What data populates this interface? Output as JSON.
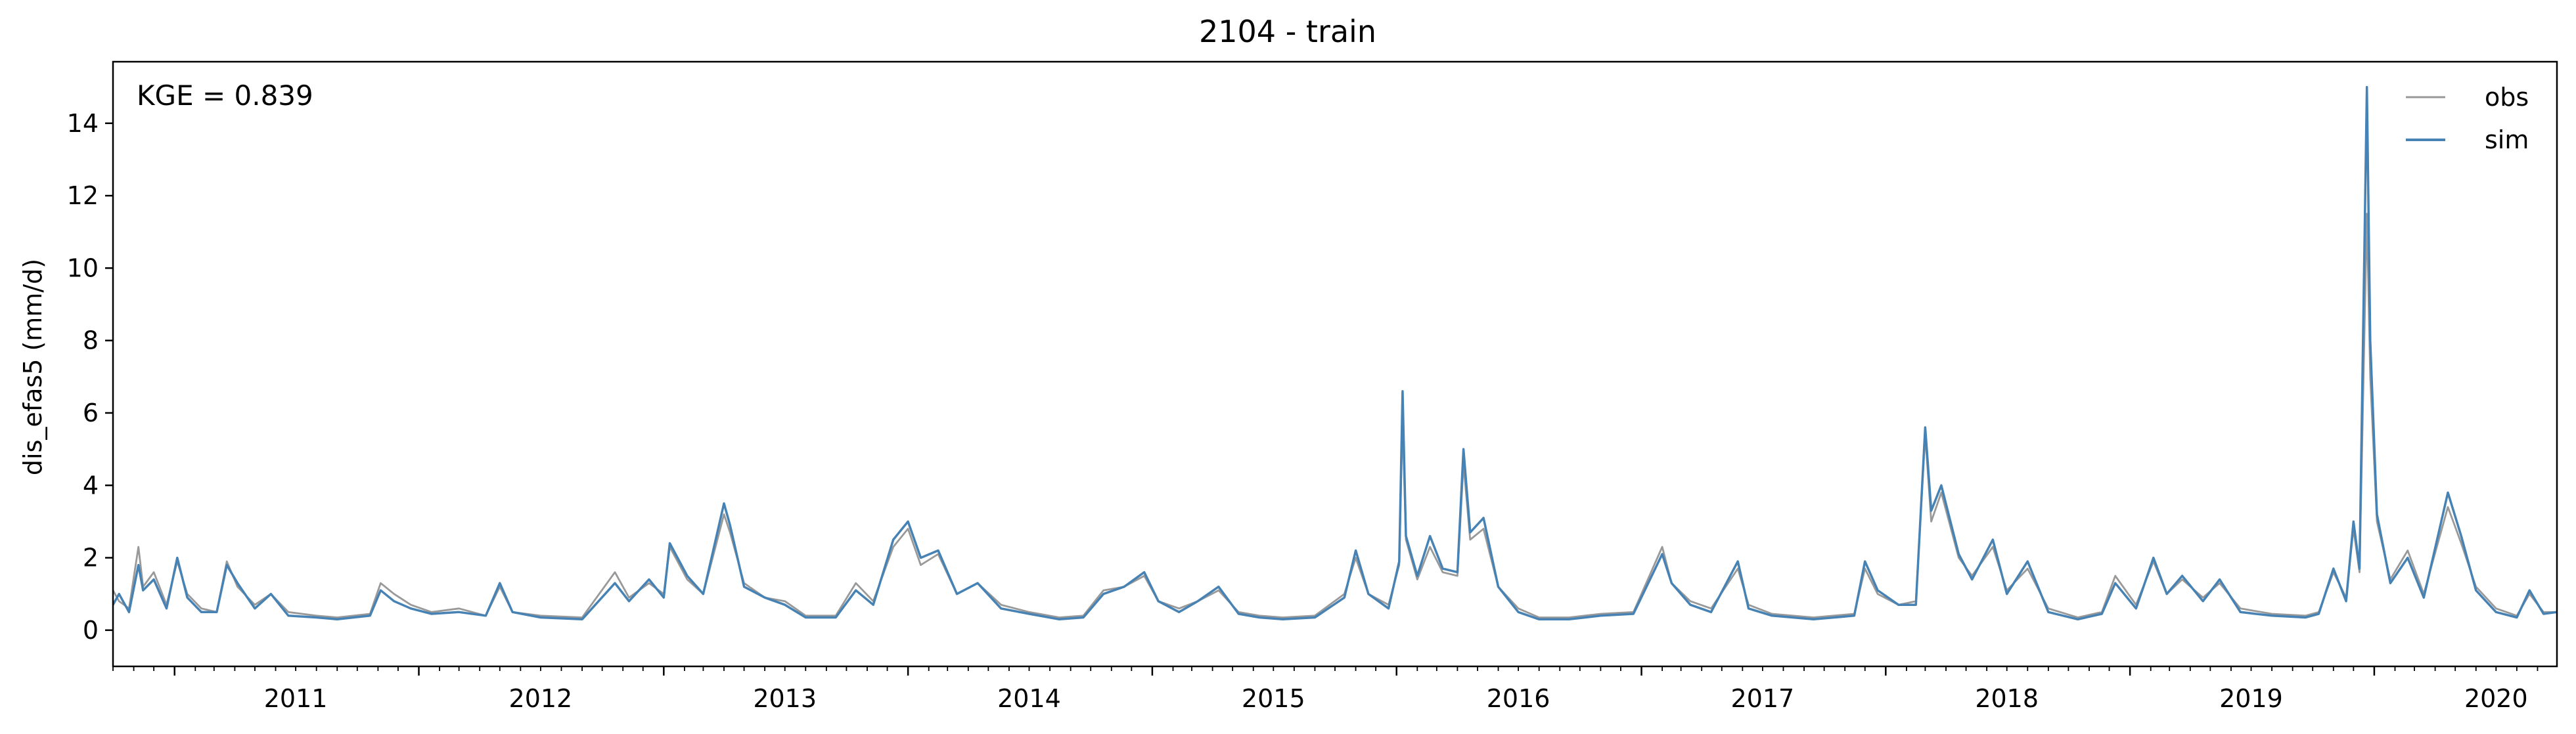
{
  "chart_data": {
    "type": "line",
    "title": "2104 - train",
    "xlabel": "",
    "ylabel": "dis_efas5 (mm/d)",
    "annotation": "KGE = 0.839",
    "legend_position": "top-right",
    "grid": false,
    "xlim": [
      "2010-10-01",
      "2020-09-30"
    ],
    "ylim": [
      -1,
      15.7
    ],
    "x_ticks": [
      "2011",
      "2012",
      "2013",
      "2014",
      "2015",
      "2016",
      "2017",
      "2018",
      "2019",
      "2020"
    ],
    "y_ticks": [
      0,
      2,
      4,
      6,
      8,
      10,
      12,
      14
    ],
    "colors": {
      "obs": "#999999",
      "sim": "#4682b4"
    },
    "series": [
      {
        "name": "obs",
        "points": [
          [
            "2010-10-01",
            1.1
          ],
          [
            "2010-10-10",
            0.8
          ],
          [
            "2010-10-25",
            0.6
          ],
          [
            "2010-11-08",
            2.3
          ],
          [
            "2010-11-15",
            1.2
          ],
          [
            "2010-12-01",
            1.6
          ],
          [
            "2010-12-20",
            0.7
          ],
          [
            "2011-01-05",
            1.9
          ],
          [
            "2011-01-20",
            1.0
          ],
          [
            "2011-02-10",
            0.6
          ],
          [
            "2011-03-05",
            0.5
          ],
          [
            "2011-03-20",
            1.9
          ],
          [
            "2011-04-05",
            1.2
          ],
          [
            "2011-05-01",
            0.7
          ],
          [
            "2011-05-25",
            1.0
          ],
          [
            "2011-06-20",
            0.5
          ],
          [
            "2011-08-01",
            0.4
          ],
          [
            "2011-09-01",
            0.35
          ],
          [
            "2011-10-20",
            0.45
          ],
          [
            "2011-11-05",
            1.3
          ],
          [
            "2011-11-25",
            1.0
          ],
          [
            "2011-12-20",
            0.7
          ],
          [
            "2012-01-20",
            0.5
          ],
          [
            "2012-03-01",
            0.6
          ],
          [
            "2012-04-10",
            0.4
          ],
          [
            "2012-05-01",
            1.2
          ],
          [
            "2012-05-20",
            0.5
          ],
          [
            "2012-07-01",
            0.4
          ],
          [
            "2012-09-01",
            0.35
          ],
          [
            "2012-10-20",
            1.6
          ],
          [
            "2012-11-10",
            0.9
          ],
          [
            "2012-12-10",
            1.3
          ],
          [
            "2013-01-01",
            1.0
          ],
          [
            "2013-01-10",
            2.3
          ],
          [
            "2013-02-05",
            1.4
          ],
          [
            "2013-03-01",
            1.0
          ],
          [
            "2013-04-01",
            3.2
          ],
          [
            "2013-04-10",
            2.7
          ],
          [
            "2013-05-01",
            1.3
          ],
          [
            "2013-06-01",
            0.9
          ],
          [
            "2013-07-01",
            0.8
          ],
          [
            "2013-08-01",
            0.4
          ],
          [
            "2013-09-15",
            0.4
          ],
          [
            "2013-10-15",
            1.3
          ],
          [
            "2013-11-10",
            0.8
          ],
          [
            "2013-12-10",
            2.3
          ],
          [
            "2014-01-01",
            2.8
          ],
          [
            "2014-01-20",
            1.8
          ],
          [
            "2014-02-15",
            2.1
          ],
          [
            "2014-03-15",
            1.0
          ],
          [
            "2014-04-15",
            1.3
          ],
          [
            "2014-05-20",
            0.7
          ],
          [
            "2014-07-01",
            0.5
          ],
          [
            "2014-08-15",
            0.35
          ],
          [
            "2014-09-20",
            0.4
          ],
          [
            "2014-10-20",
            1.1
          ],
          [
            "2014-11-20",
            1.2
          ],
          [
            "2014-12-20",
            1.5
          ],
          [
            "2015-01-10",
            0.8
          ],
          [
            "2015-02-10",
            0.6
          ],
          [
            "2015-03-10",
            0.8
          ],
          [
            "2015-04-10",
            1.1
          ],
          [
            "2015-05-10",
            0.5
          ],
          [
            "2015-06-10",
            0.4
          ],
          [
            "2015-07-15",
            0.35
          ],
          [
            "2015-09-01",
            0.4
          ],
          [
            "2015-10-15",
            1.0
          ],
          [
            "2015-11-01",
            2.0
          ],
          [
            "2015-11-20",
            1.0
          ],
          [
            "2015-12-20",
            0.7
          ],
          [
            "2016-01-05",
            1.8
          ],
          [
            "2016-01-10",
            5.8
          ],
          [
            "2016-01-15",
            2.5
          ],
          [
            "2016-02-01",
            1.4
          ],
          [
            "2016-02-20",
            2.3
          ],
          [
            "2016-03-10",
            1.6
          ],
          [
            "2016-04-01",
            1.5
          ],
          [
            "2016-04-10",
            4.6
          ],
          [
            "2016-04-20",
            2.5
          ],
          [
            "2016-05-10",
            2.8
          ],
          [
            "2016-06-01",
            1.2
          ],
          [
            "2016-07-01",
            0.6
          ],
          [
            "2016-08-01",
            0.35
          ],
          [
            "2016-09-15",
            0.35
          ],
          [
            "2016-11-01",
            0.45
          ],
          [
            "2016-12-20",
            0.5
          ],
          [
            "2017-02-01",
            2.3
          ],
          [
            "2017-02-15",
            1.3
          ],
          [
            "2017-03-15",
            0.8
          ],
          [
            "2017-04-15",
            0.6
          ],
          [
            "2017-05-25",
            1.7
          ],
          [
            "2017-06-10",
            0.7
          ],
          [
            "2017-07-15",
            0.45
          ],
          [
            "2017-09-15",
            0.35
          ],
          [
            "2017-11-15",
            0.45
          ],
          [
            "2017-12-01",
            1.7
          ],
          [
            "2017-12-20",
            1.0
          ],
          [
            "2018-01-20",
            0.7
          ],
          [
            "2018-02-15",
            0.8
          ],
          [
            "2018-03-01",
            5.4
          ],
          [
            "2018-03-10",
            3.0
          ],
          [
            "2018-03-25",
            3.8
          ],
          [
            "2018-04-20",
            2.0
          ],
          [
            "2018-05-10",
            1.5
          ],
          [
            "2018-06-10",
            2.3
          ],
          [
            "2018-07-01",
            1.1
          ],
          [
            "2018-08-01",
            1.7
          ],
          [
            "2018-09-01",
            0.6
          ],
          [
            "2018-10-15",
            0.35
          ],
          [
            "2018-11-20",
            0.5
          ],
          [
            "2018-12-10",
            1.5
          ],
          [
            "2019-01-10",
            0.7
          ],
          [
            "2019-02-05",
            1.9
          ],
          [
            "2019-02-25",
            1.0
          ],
          [
            "2019-03-20",
            1.4
          ],
          [
            "2019-04-20",
            0.9
          ],
          [
            "2019-05-15",
            1.3
          ],
          [
            "2019-06-15",
            0.6
          ],
          [
            "2019-08-01",
            0.45
          ],
          [
            "2019-09-20",
            0.4
          ],
          [
            "2019-10-10",
            0.5
          ],
          [
            "2019-11-01",
            1.6
          ],
          [
            "2019-11-20",
            0.9
          ],
          [
            "2019-12-01",
            2.8
          ],
          [
            "2019-12-10",
            1.6
          ],
          [
            "2019-12-21",
            11.5
          ],
          [
            "2019-12-26",
            7.0
          ],
          [
            "2020-01-05",
            3.0
          ],
          [
            "2020-01-25",
            1.4
          ],
          [
            "2020-02-20",
            2.2
          ],
          [
            "2020-03-15",
            1.0
          ],
          [
            "2020-04-20",
            3.4
          ],
          [
            "2020-05-10",
            2.4
          ],
          [
            "2020-06-01",
            1.2
          ],
          [
            "2020-07-01",
            0.6
          ],
          [
            "2020-08-01",
            0.4
          ],
          [
            "2020-08-20",
            1.0
          ],
          [
            "2020-09-10",
            0.5
          ],
          [
            "2020-09-30",
            0.5
          ]
        ]
      },
      {
        "name": "sim",
        "points": [
          [
            "2010-10-01",
            0.7
          ],
          [
            "2010-10-10",
            1.0
          ],
          [
            "2010-10-25",
            0.5
          ],
          [
            "2010-11-08",
            1.8
          ],
          [
            "2010-11-15",
            1.1
          ],
          [
            "2010-12-01",
            1.4
          ],
          [
            "2010-12-20",
            0.6
          ],
          [
            "2011-01-05",
            2.0
          ],
          [
            "2011-01-20",
            0.9
          ],
          [
            "2011-02-10",
            0.5
          ],
          [
            "2011-03-05",
            0.5
          ],
          [
            "2011-03-20",
            1.8
          ],
          [
            "2011-04-05",
            1.3
          ],
          [
            "2011-05-01",
            0.6
          ],
          [
            "2011-05-25",
            1.0
          ],
          [
            "2011-06-20",
            0.4
          ],
          [
            "2011-08-01",
            0.35
          ],
          [
            "2011-09-01",
            0.3
          ],
          [
            "2011-10-20",
            0.4
          ],
          [
            "2011-11-05",
            1.1
          ],
          [
            "2011-11-25",
            0.8
          ],
          [
            "2011-12-20",
            0.6
          ],
          [
            "2012-01-20",
            0.45
          ],
          [
            "2012-03-01",
            0.5
          ],
          [
            "2012-04-10",
            0.4
          ],
          [
            "2012-05-01",
            1.3
          ],
          [
            "2012-05-20",
            0.5
          ],
          [
            "2012-07-01",
            0.35
          ],
          [
            "2012-09-01",
            0.3
          ],
          [
            "2012-10-20",
            1.3
          ],
          [
            "2012-11-10",
            0.8
          ],
          [
            "2012-12-10",
            1.4
          ],
          [
            "2013-01-01",
            0.9
          ],
          [
            "2013-01-10",
            2.4
          ],
          [
            "2013-02-05",
            1.5
          ],
          [
            "2013-03-01",
            1.0
          ],
          [
            "2013-04-01",
            3.5
          ],
          [
            "2013-04-10",
            2.9
          ],
          [
            "2013-05-01",
            1.2
          ],
          [
            "2013-06-01",
            0.9
          ],
          [
            "2013-07-01",
            0.7
          ],
          [
            "2013-08-01",
            0.35
          ],
          [
            "2013-09-15",
            0.35
          ],
          [
            "2013-10-15",
            1.1
          ],
          [
            "2013-11-10",
            0.7
          ],
          [
            "2013-12-10",
            2.5
          ],
          [
            "2014-01-01",
            3.0
          ],
          [
            "2014-01-20",
            2.0
          ],
          [
            "2014-02-15",
            2.2
          ],
          [
            "2014-03-15",
            1.0
          ],
          [
            "2014-04-15",
            1.3
          ],
          [
            "2014-05-20",
            0.6
          ],
          [
            "2014-07-01",
            0.45
          ],
          [
            "2014-08-15",
            0.3
          ],
          [
            "2014-09-20",
            0.35
          ],
          [
            "2014-10-20",
            1.0
          ],
          [
            "2014-11-20",
            1.2
          ],
          [
            "2014-12-20",
            1.6
          ],
          [
            "2015-01-10",
            0.8
          ],
          [
            "2015-02-10",
            0.5
          ],
          [
            "2015-03-10",
            0.8
          ],
          [
            "2015-04-10",
            1.2
          ],
          [
            "2015-05-10",
            0.45
          ],
          [
            "2015-06-10",
            0.35
          ],
          [
            "2015-07-15",
            0.3
          ],
          [
            "2015-09-01",
            0.35
          ],
          [
            "2015-10-15",
            0.9
          ],
          [
            "2015-11-01",
            2.2
          ],
          [
            "2015-11-20",
            1.0
          ],
          [
            "2015-12-20",
            0.6
          ],
          [
            "2016-01-05",
            1.9
          ],
          [
            "2016-01-10",
            6.6
          ],
          [
            "2016-01-15",
            2.6
          ],
          [
            "2016-02-01",
            1.5
          ],
          [
            "2016-02-20",
            2.6
          ],
          [
            "2016-03-10",
            1.7
          ],
          [
            "2016-04-01",
            1.6
          ],
          [
            "2016-04-10",
            5.0
          ],
          [
            "2016-04-20",
            2.7
          ],
          [
            "2016-05-10",
            3.1
          ],
          [
            "2016-06-01",
            1.2
          ],
          [
            "2016-07-01",
            0.5
          ],
          [
            "2016-08-01",
            0.3
          ],
          [
            "2016-09-15",
            0.3
          ],
          [
            "2016-11-01",
            0.4
          ],
          [
            "2016-12-20",
            0.45
          ],
          [
            "2017-02-01",
            2.1
          ],
          [
            "2017-02-15",
            1.3
          ],
          [
            "2017-03-15",
            0.7
          ],
          [
            "2017-04-15",
            0.5
          ],
          [
            "2017-05-25",
            1.9
          ],
          [
            "2017-06-10",
            0.6
          ],
          [
            "2017-07-15",
            0.4
          ],
          [
            "2017-09-15",
            0.3
          ],
          [
            "2017-11-15",
            0.4
          ],
          [
            "2017-12-01",
            1.9
          ],
          [
            "2017-12-20",
            1.1
          ],
          [
            "2018-01-20",
            0.7
          ],
          [
            "2018-02-15",
            0.7
          ],
          [
            "2018-03-01",
            5.6
          ],
          [
            "2018-03-10",
            3.3
          ],
          [
            "2018-03-25",
            4.0
          ],
          [
            "2018-04-20",
            2.1
          ],
          [
            "2018-05-10",
            1.4
          ],
          [
            "2018-06-10",
            2.5
          ],
          [
            "2018-07-01",
            1.0
          ],
          [
            "2018-08-01",
            1.9
          ],
          [
            "2018-09-01",
            0.5
          ],
          [
            "2018-10-15",
            0.3
          ],
          [
            "2018-11-20",
            0.45
          ],
          [
            "2018-12-10",
            1.3
          ],
          [
            "2019-01-10",
            0.6
          ],
          [
            "2019-02-05",
            2.0
          ],
          [
            "2019-02-25",
            1.0
          ],
          [
            "2019-03-20",
            1.5
          ],
          [
            "2019-04-20",
            0.8
          ],
          [
            "2019-05-15",
            1.4
          ],
          [
            "2019-06-15",
            0.5
          ],
          [
            "2019-08-01",
            0.4
          ],
          [
            "2019-09-20",
            0.35
          ],
          [
            "2019-10-10",
            0.45
          ],
          [
            "2019-11-01",
            1.7
          ],
          [
            "2019-11-20",
            0.8
          ],
          [
            "2019-12-01",
            3.0
          ],
          [
            "2019-12-10",
            1.7
          ],
          [
            "2019-12-21",
            15.0
          ],
          [
            "2019-12-26",
            8.0
          ],
          [
            "2020-01-05",
            3.2
          ],
          [
            "2020-01-25",
            1.3
          ],
          [
            "2020-02-20",
            2.0
          ],
          [
            "2020-03-15",
            0.9
          ],
          [
            "2020-04-20",
            3.8
          ],
          [
            "2020-05-10",
            2.6
          ],
          [
            "2020-06-01",
            1.1
          ],
          [
            "2020-07-01",
            0.5
          ],
          [
            "2020-08-01",
            0.35
          ],
          [
            "2020-08-20",
            1.1
          ],
          [
            "2020-09-10",
            0.45
          ],
          [
            "2020-09-30",
            0.5
          ]
        ]
      }
    ]
  }
}
